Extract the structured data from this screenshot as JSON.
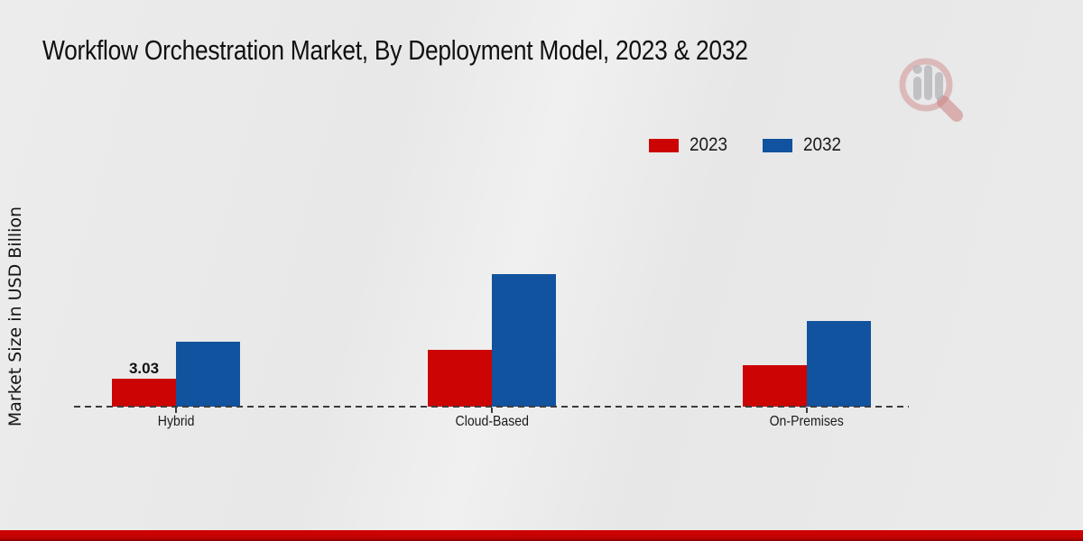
{
  "title": "Workflow Orchestration Market, By Deployment Model, 2023 & 2032",
  "y_axis_label": "Market Size in USD Billion",
  "legend": {
    "items": [
      {
        "label": "2023",
        "color": "#cc0404"
      },
      {
        "label": "2032",
        "color": "#11539e"
      }
    ]
  },
  "chart_data": {
    "type": "bar",
    "title": "Workflow Orchestration Market, By Deployment Model, 2023 & 2032",
    "xlabel": "",
    "ylabel": "Market Size in USD Billion",
    "units": "USD Billion",
    "categories": [
      "Hybrid",
      "Cloud-Based",
      "On-Premises"
    ],
    "series": [
      {
        "name": "2023",
        "color": "#cc0404",
        "values": [
          3.03,
          6.15,
          4.5
        ],
        "data_labels": [
          "3.03",
          "",
          ""
        ]
      },
      {
        "name": "2032",
        "color": "#11539e",
        "values": [
          7.05,
          14.45,
          9.3
        ],
        "data_labels": [
          "",
          "",
          ""
        ]
      }
    ],
    "ylim": [
      0,
      16
    ],
    "grid": false,
    "legend_position": "top-right",
    "baseline_style": "dashed",
    "y_axis_ticks_visible": false
  },
  "watermark": {
    "icon": "magnifier-bar-chart-logo",
    "circle_color": "#d99a9a",
    "bars_color": "#c3c3c8"
  },
  "footer": {
    "band_color": "#c00000"
  }
}
